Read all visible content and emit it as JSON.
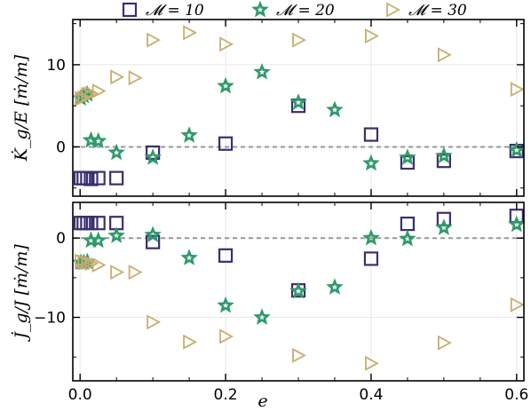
{
  "colors": {
    "series": [
      "#3b2f6e",
      "#2e9a6a",
      "#c8ad6e"
    ],
    "grid": "#e8e8e8",
    "zero_line": "#999999"
  },
  "chart_data": [
    {
      "type": "scatter",
      "panel": "top",
      "ylabel": "K̇_g/E [ṁ/m]",
      "xlim": [
        -0.01,
        0.61
      ],
      "ylim": [
        -6,
        15.5
      ],
      "yticks": [
        -10,
        0,
        10
      ],
      "ytick_labels": [
        "0",
        "10"
      ],
      "zero_line": true,
      "grid": true,
      "legend": {
        "placement": "top",
        "entries": [
          "𝓜 = 10",
          "𝓜 = 20",
          "𝓜 = 30"
        ]
      },
      "series": [
        {
          "name": "𝓜 = 10",
          "marker": "square",
          "x": [
            0.001,
            0.005,
            0.01,
            0.015,
            0.025,
            0.05,
            0.1,
            0.2,
            0.3,
            0.4,
            0.45,
            0.5,
            0.6
          ],
          "y": [
            -3.8,
            -3.8,
            -3.8,
            -3.9,
            -3.8,
            -3.8,
            -0.7,
            0.4,
            5.0,
            1.5,
            -1.9,
            -1.7,
            -0.5
          ]
        },
        {
          "name": "𝓜 = 20",
          "marker": "star",
          "x": [
            0.001,
            0.005,
            0.01,
            0.015,
            0.025,
            0.05,
            0.1,
            0.15,
            0.2,
            0.25,
            0.3,
            0.35,
            0.4,
            0.45,
            0.5,
            0.6
          ],
          "y": [
            5.9,
            6.2,
            6.4,
            0.8,
            0.7,
            -0.7,
            -1.3,
            1.4,
            7.4,
            9.1,
            5.4,
            4.5,
            -2.0,
            -1.3,
            -1.1,
            -0.4
          ]
        },
        {
          "name": "𝓜 = 30",
          "marker": "triangle-right",
          "x": [
            0.001,
            0.005,
            0.01,
            0.015,
            0.025,
            0.05,
            0.075,
            0.1,
            0.15,
            0.2,
            0.3,
            0.4,
            0.5,
            0.6
          ],
          "y": [
            5.9,
            6.0,
            6.4,
            6.5,
            6.8,
            8.5,
            8.4,
            13.0,
            13.9,
            12.5,
            13.0,
            13.5,
            11.2,
            7.0
          ]
        }
      ]
    },
    {
      "type": "scatter",
      "panel": "bottom",
      "xlabel": "e",
      "ylabel": "J̇_g/J [ṁ/m]",
      "xlim": [
        -0.01,
        0.61
      ],
      "ylim": [
        -18,
        4.5
      ],
      "yticks": [
        -10,
        0
      ],
      "ytick_labels": [
        "−10",
        "0"
      ],
      "xticks": [
        0,
        0.2,
        0.4,
        0.6
      ],
      "xtick_labels": [
        "0.0",
        "0.2",
        "0.4",
        "0.6"
      ],
      "zero_line": true,
      "grid": true,
      "series": [
        {
          "name": "𝓜 = 10",
          "marker": "square",
          "x": [
            0.001,
            0.005,
            0.01,
            0.015,
            0.025,
            0.05,
            0.1,
            0.2,
            0.3,
            0.4,
            0.45,
            0.5,
            0.6
          ],
          "y": [
            1.9,
            1.9,
            1.9,
            1.9,
            1.9,
            1.9,
            -0.5,
            -2.2,
            -6.6,
            -2.6,
            1.8,
            2.4,
            2.8
          ]
        },
        {
          "name": "𝓜 = 20",
          "marker": "star",
          "x": [
            0.001,
            0.005,
            0.01,
            0.015,
            0.025,
            0.05,
            0.1,
            0.15,
            0.2,
            0.25,
            0.3,
            0.35,
            0.4,
            0.45,
            0.5,
            0.6
          ],
          "y": [
            -3.1,
            -3.1,
            -3.0,
            -0.3,
            -0.3,
            0.3,
            0.4,
            -2.5,
            -8.5,
            -10.0,
            -6.7,
            -6.2,
            0.0,
            -0.1,
            1.3,
            1.7
          ]
        },
        {
          "name": "𝓜 = 30",
          "marker": "triangle-right",
          "x": [
            0.001,
            0.005,
            0.01,
            0.015,
            0.025,
            0.05,
            0.075,
            0.1,
            0.15,
            0.2,
            0.3,
            0.4,
            0.5,
            0.6
          ],
          "y": [
            -2.9,
            -3.0,
            -3.1,
            -3.2,
            -3.4,
            -4.3,
            -4.3,
            -10.6,
            -13.1,
            -12.4,
            -14.8,
            -15.8,
            -13.2,
            -8.4
          ]
        }
      ]
    }
  ]
}
